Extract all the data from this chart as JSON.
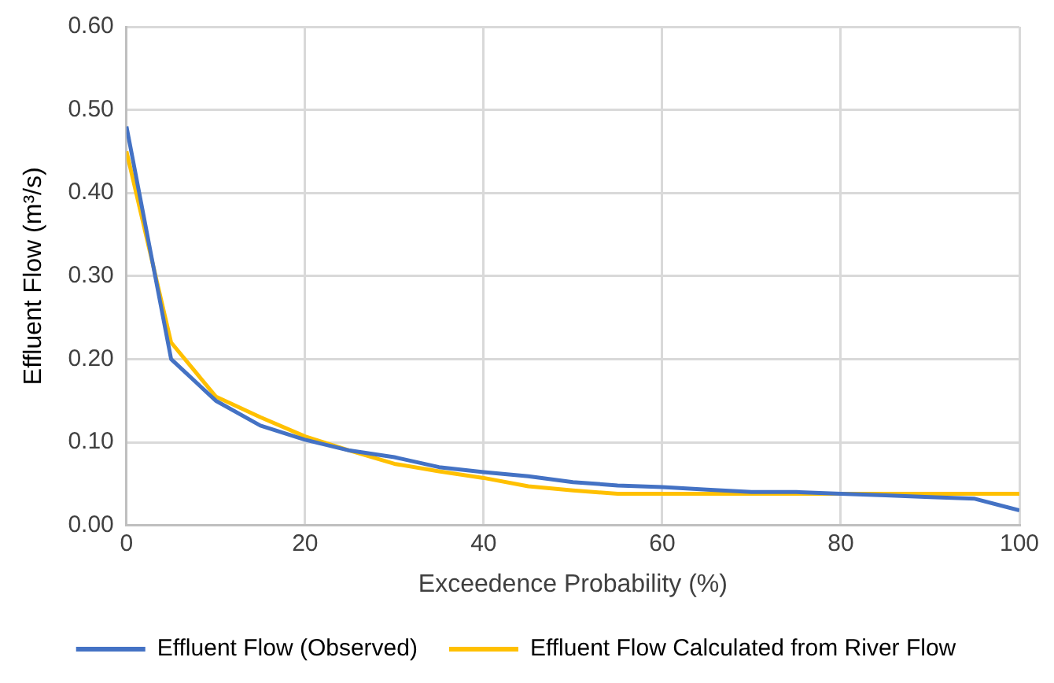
{
  "chart_data": {
    "type": "line",
    "xlabel": "Exceedence Probability (%)",
    "ylabel": "Effluent Flow (m³/s)",
    "x": [
      0,
      5,
      10,
      15,
      20,
      25,
      30,
      35,
      40,
      45,
      50,
      55,
      60,
      65,
      70,
      75,
      80,
      85,
      90,
      95,
      100
    ],
    "series": [
      {
        "name": "Effluent Flow (Observed)",
        "color": "#4472c4",
        "values": [
          0.48,
          0.2,
          0.15,
          0.12,
          0.103,
          0.09,
          0.082,
          0.07,
          0.064,
          0.059,
          0.052,
          0.048,
          0.046,
          0.043,
          0.04,
          0.04,
          0.038,
          0.036,
          0.034,
          0.032,
          0.018
        ]
      },
      {
        "name": "Effluent Flow Calculated from River Flow",
        "color": "#ffc000",
        "values": [
          0.45,
          0.22,
          0.155,
          0.13,
          0.107,
          0.09,
          0.074,
          0.065,
          0.057,
          0.047,
          0.042,
          0.038,
          0.038,
          0.038,
          0.038,
          0.038,
          0.038,
          0.038,
          0.038,
          0.038,
          0.038
        ]
      }
    ],
    "xlim": [
      0,
      100
    ],
    "xticks": [
      0,
      20,
      40,
      60,
      80,
      100
    ],
    "ylim": [
      0,
      0.6
    ],
    "yticks": [
      {
        "value": 0,
        "label": "0.00"
      },
      {
        "value": 0.1,
        "label": "0.10"
      },
      {
        "value": 0.2,
        "label": "0.20"
      },
      {
        "value": 0.3,
        "label": "0.30"
      },
      {
        "value": 0.4,
        "label": "0.40"
      },
      {
        "value": 0.5,
        "label": "0.50"
      },
      {
        "value": 0.6,
        "label": "0.60"
      }
    ],
    "grid": true,
    "legend": "bottom",
    "marker": "none",
    "line_style": "solid"
  }
}
